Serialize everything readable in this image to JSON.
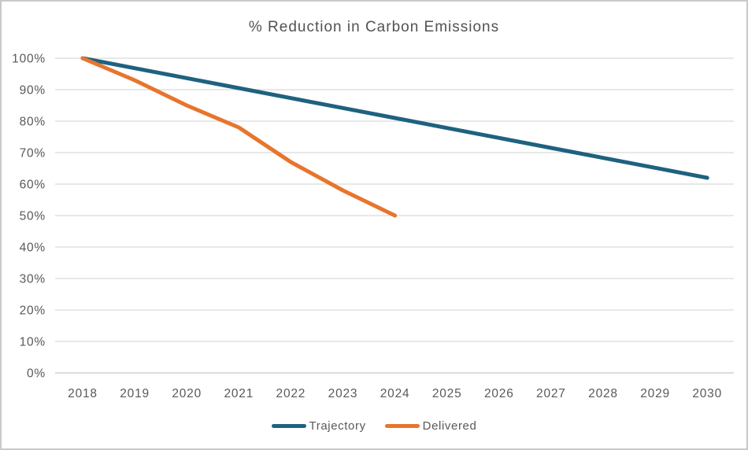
{
  "window": {
    "background_color": "#FFFFFF",
    "border_color": "#C9C9C9"
  },
  "chart_data": {
    "type": "line",
    "title": "% Reduction in Carbon Emissions",
    "xlabel": "",
    "ylabel": "",
    "categories": [
      "2018",
      "2019",
      "2020",
      "2021",
      "2022",
      "2023",
      "2024",
      "2025",
      "2026",
      "2027",
      "2028",
      "2029",
      "2030"
    ],
    "y_tick_labels": [
      "0%",
      "10%",
      "20%",
      "30%",
      "40%",
      "50%",
      "60%",
      "70%",
      "80%",
      "90%",
      "100%"
    ],
    "ylim": [
      0,
      100
    ],
    "grid": true,
    "legend_position": "bottom",
    "series": [
      {
        "name": "Trajectory",
        "color": "#1E627F",
        "values": [
          100,
          96.83,
          93.67,
          90.5,
          87.33,
          84.17,
          81,
          77.83,
          74.67,
          71.5,
          68.33,
          65.17,
          62
        ]
      },
      {
        "name": "Delivered",
        "color": "#E8752D",
        "values": [
          100,
          93,
          85,
          78,
          67,
          58,
          50,
          null,
          null,
          null,
          null,
          null,
          null
        ]
      }
    ],
    "colors": {
      "gridline": "#D9D9D9",
      "baseline": "#C8C8C8",
      "tick_label": "#595959",
      "title": "#525252"
    }
  }
}
